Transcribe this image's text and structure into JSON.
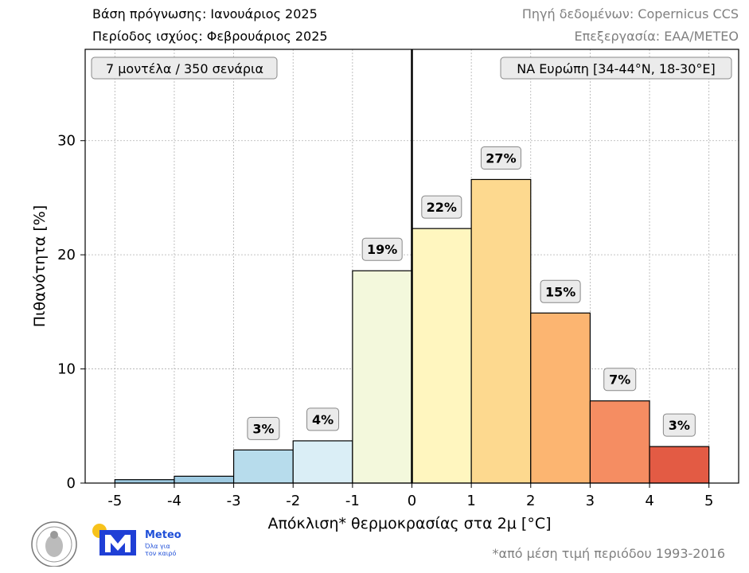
{
  "header": {
    "forecast_base": "Βάση πρόγνωσης: Ιανουάριος 2025",
    "valid_period": "Περίοδος ισχύος: Φεβρουάριος 2025",
    "data_source": "Πηγή δεδομένων: Copernicus CCS",
    "processing": "Επεξεργασία: ΕΑΑ/ΜΕΤΕΟ"
  },
  "footer": {
    "footnote": "*από μέση τιμή περιόδου 1993-2016",
    "meteo_label": "Meteo",
    "meteo_tagline_1": "Όλα για",
    "meteo_tagline_2": "τον καιρό"
  },
  "chart_data": {
    "type": "bar",
    "annotation_left": "7 μοντέλα / 350 σενάρια",
    "annotation_right": "ΝΑ Ευρώπη [34-44°N, 18-30°E]",
    "xlabel": "Απόκλιση* θερμοκρασίας στα 2μ [°C]",
    "ylabel": "Πιθανότητα [%]",
    "xlim": [
      -5.5,
      5.5
    ],
    "ylim": [
      0,
      38
    ],
    "x_ticks": [
      -5,
      -4,
      -3,
      -2,
      -1,
      0,
      1,
      2,
      3,
      4,
      5
    ],
    "y_ticks": [
      0,
      10,
      20,
      30
    ],
    "grid": true,
    "zero_line": 0,
    "bins": [
      {
        "from": -5,
        "to": -4,
        "value": 0.3,
        "label": "",
        "color": "#9ecae1"
      },
      {
        "from": -4,
        "to": -3,
        "value": 0.6,
        "label": "",
        "color": "#9ecae1"
      },
      {
        "from": -3,
        "to": -2,
        "value": 2.9,
        "label": "3%",
        "color": "#b7dcec"
      },
      {
        "from": -2,
        "to": -1,
        "value": 3.7,
        "label": "4%",
        "color": "#daeef6"
      },
      {
        "from": -1,
        "to": 0,
        "value": 18.6,
        "label": "19%",
        "color": "#f3f8dc"
      },
      {
        "from": 0,
        "to": 1,
        "value": 22.3,
        "label": "22%",
        "color": "#fff6bf"
      },
      {
        "from": 1,
        "to": 2,
        "value": 26.6,
        "label": "27%",
        "color": "#fdd98f"
      },
      {
        "from": 2,
        "to": 3,
        "value": 14.9,
        "label": "15%",
        "color": "#fcb571"
      },
      {
        "from": 3,
        "to": 4,
        "value": 7.2,
        "label": "7%",
        "color": "#f58d62"
      },
      {
        "from": 4,
        "to": 5,
        "value": 3.2,
        "label": "3%",
        "color": "#e35b44"
      }
    ]
  }
}
